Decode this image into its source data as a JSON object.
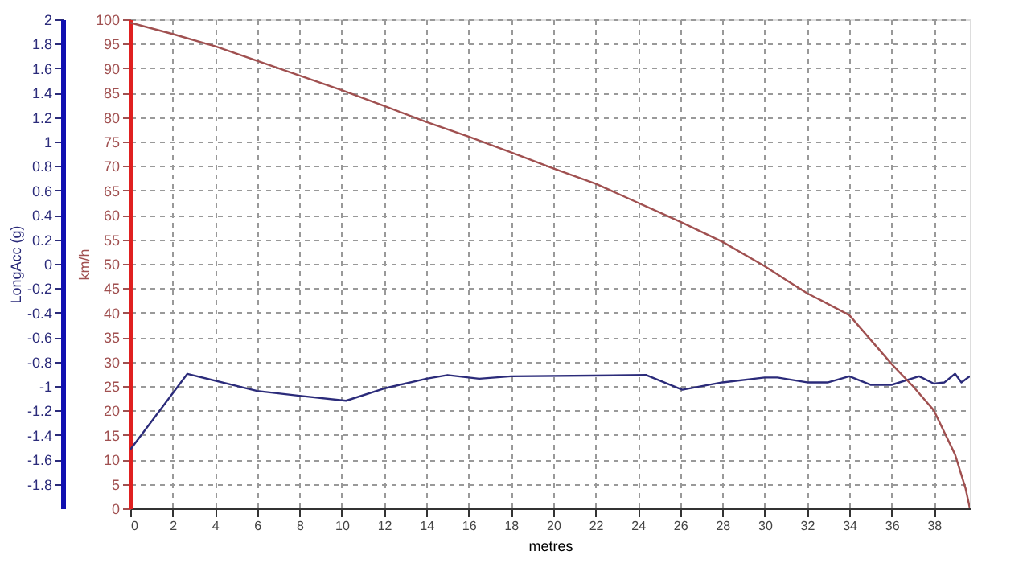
{
  "chart_data": {
    "type": "line",
    "xlabel": "metres",
    "ylabel": "LongAcc (g)",
    "y2label": "km/h",
    "xlim": [
      0,
      39.7
    ],
    "xticks": [
      0,
      2,
      4,
      6,
      8,
      10,
      12,
      14,
      16,
      18,
      20,
      22,
      24,
      26,
      28,
      30,
      32,
      34,
      36,
      38
    ],
    "ylim": [
      -2,
      2
    ],
    "yticks": [
      -1.8,
      -1.6,
      -1.4,
      -1.2,
      -1,
      -0.8,
      -0.6,
      -0.4,
      -0.2,
      0,
      0.2,
      0.4,
      0.6,
      0.8,
      1,
      1.2,
      1.4,
      1.6,
      1.8,
      2
    ],
    "y2lim": [
      0,
      100
    ],
    "y2ticks": [
      0,
      5,
      10,
      15,
      20,
      25,
      30,
      35,
      40,
      45,
      50,
      55,
      60,
      65,
      70,
      75,
      80,
      85,
      90,
      95,
      100
    ],
    "grid": true,
    "line_style": "solid",
    "marker": "none",
    "series": [
      {
        "color": "#2b2b7a",
        "x": [
          0,
          2.7,
          6,
          8,
          10.2,
          12,
          14,
          15,
          16.5,
          18,
          24.4,
          26.1,
          28,
          30,
          30.6,
          32,
          33,
          34,
          35,
          36,
          37.3,
          38,
          38.5,
          39,
          39.3,
          39.7
        ],
        "values": [
          -1.52,
          -0.9,
          -1.04,
          -1.08,
          -1.12,
          -1.02,
          -0.94,
          -0.91,
          -0.94,
          -0.92,
          -0.91,
          -1.03,
          -0.97,
          -0.93,
          -0.93,
          -0.97,
          -0.97,
          -0.92,
          -0.99,
          -0.99,
          -0.92,
          -0.98,
          -0.97,
          -0.9,
          -0.97,
          -0.92
        ]
      },
      {
        "color": "#a05050",
        "axis": "y2",
        "x": [
          0,
          2,
          4,
          6,
          8,
          10,
          12,
          14,
          16,
          18,
          20,
          22,
          24,
          26,
          28,
          30,
          31,
          32,
          34,
          36,
          37,
          38,
          39,
          39.5,
          39.7
        ],
        "values": [
          99.3,
          97,
          94.5,
          91.5,
          88.5,
          85.5,
          82.3,
          79,
          76,
          72.8,
          69.5,
          66.4,
          62.5,
          58.6,
          54.5,
          49.5,
          46.7,
          44,
          39.5,
          29.5,
          25,
          20,
          11,
          4,
          0
        ]
      }
    ]
  }
}
